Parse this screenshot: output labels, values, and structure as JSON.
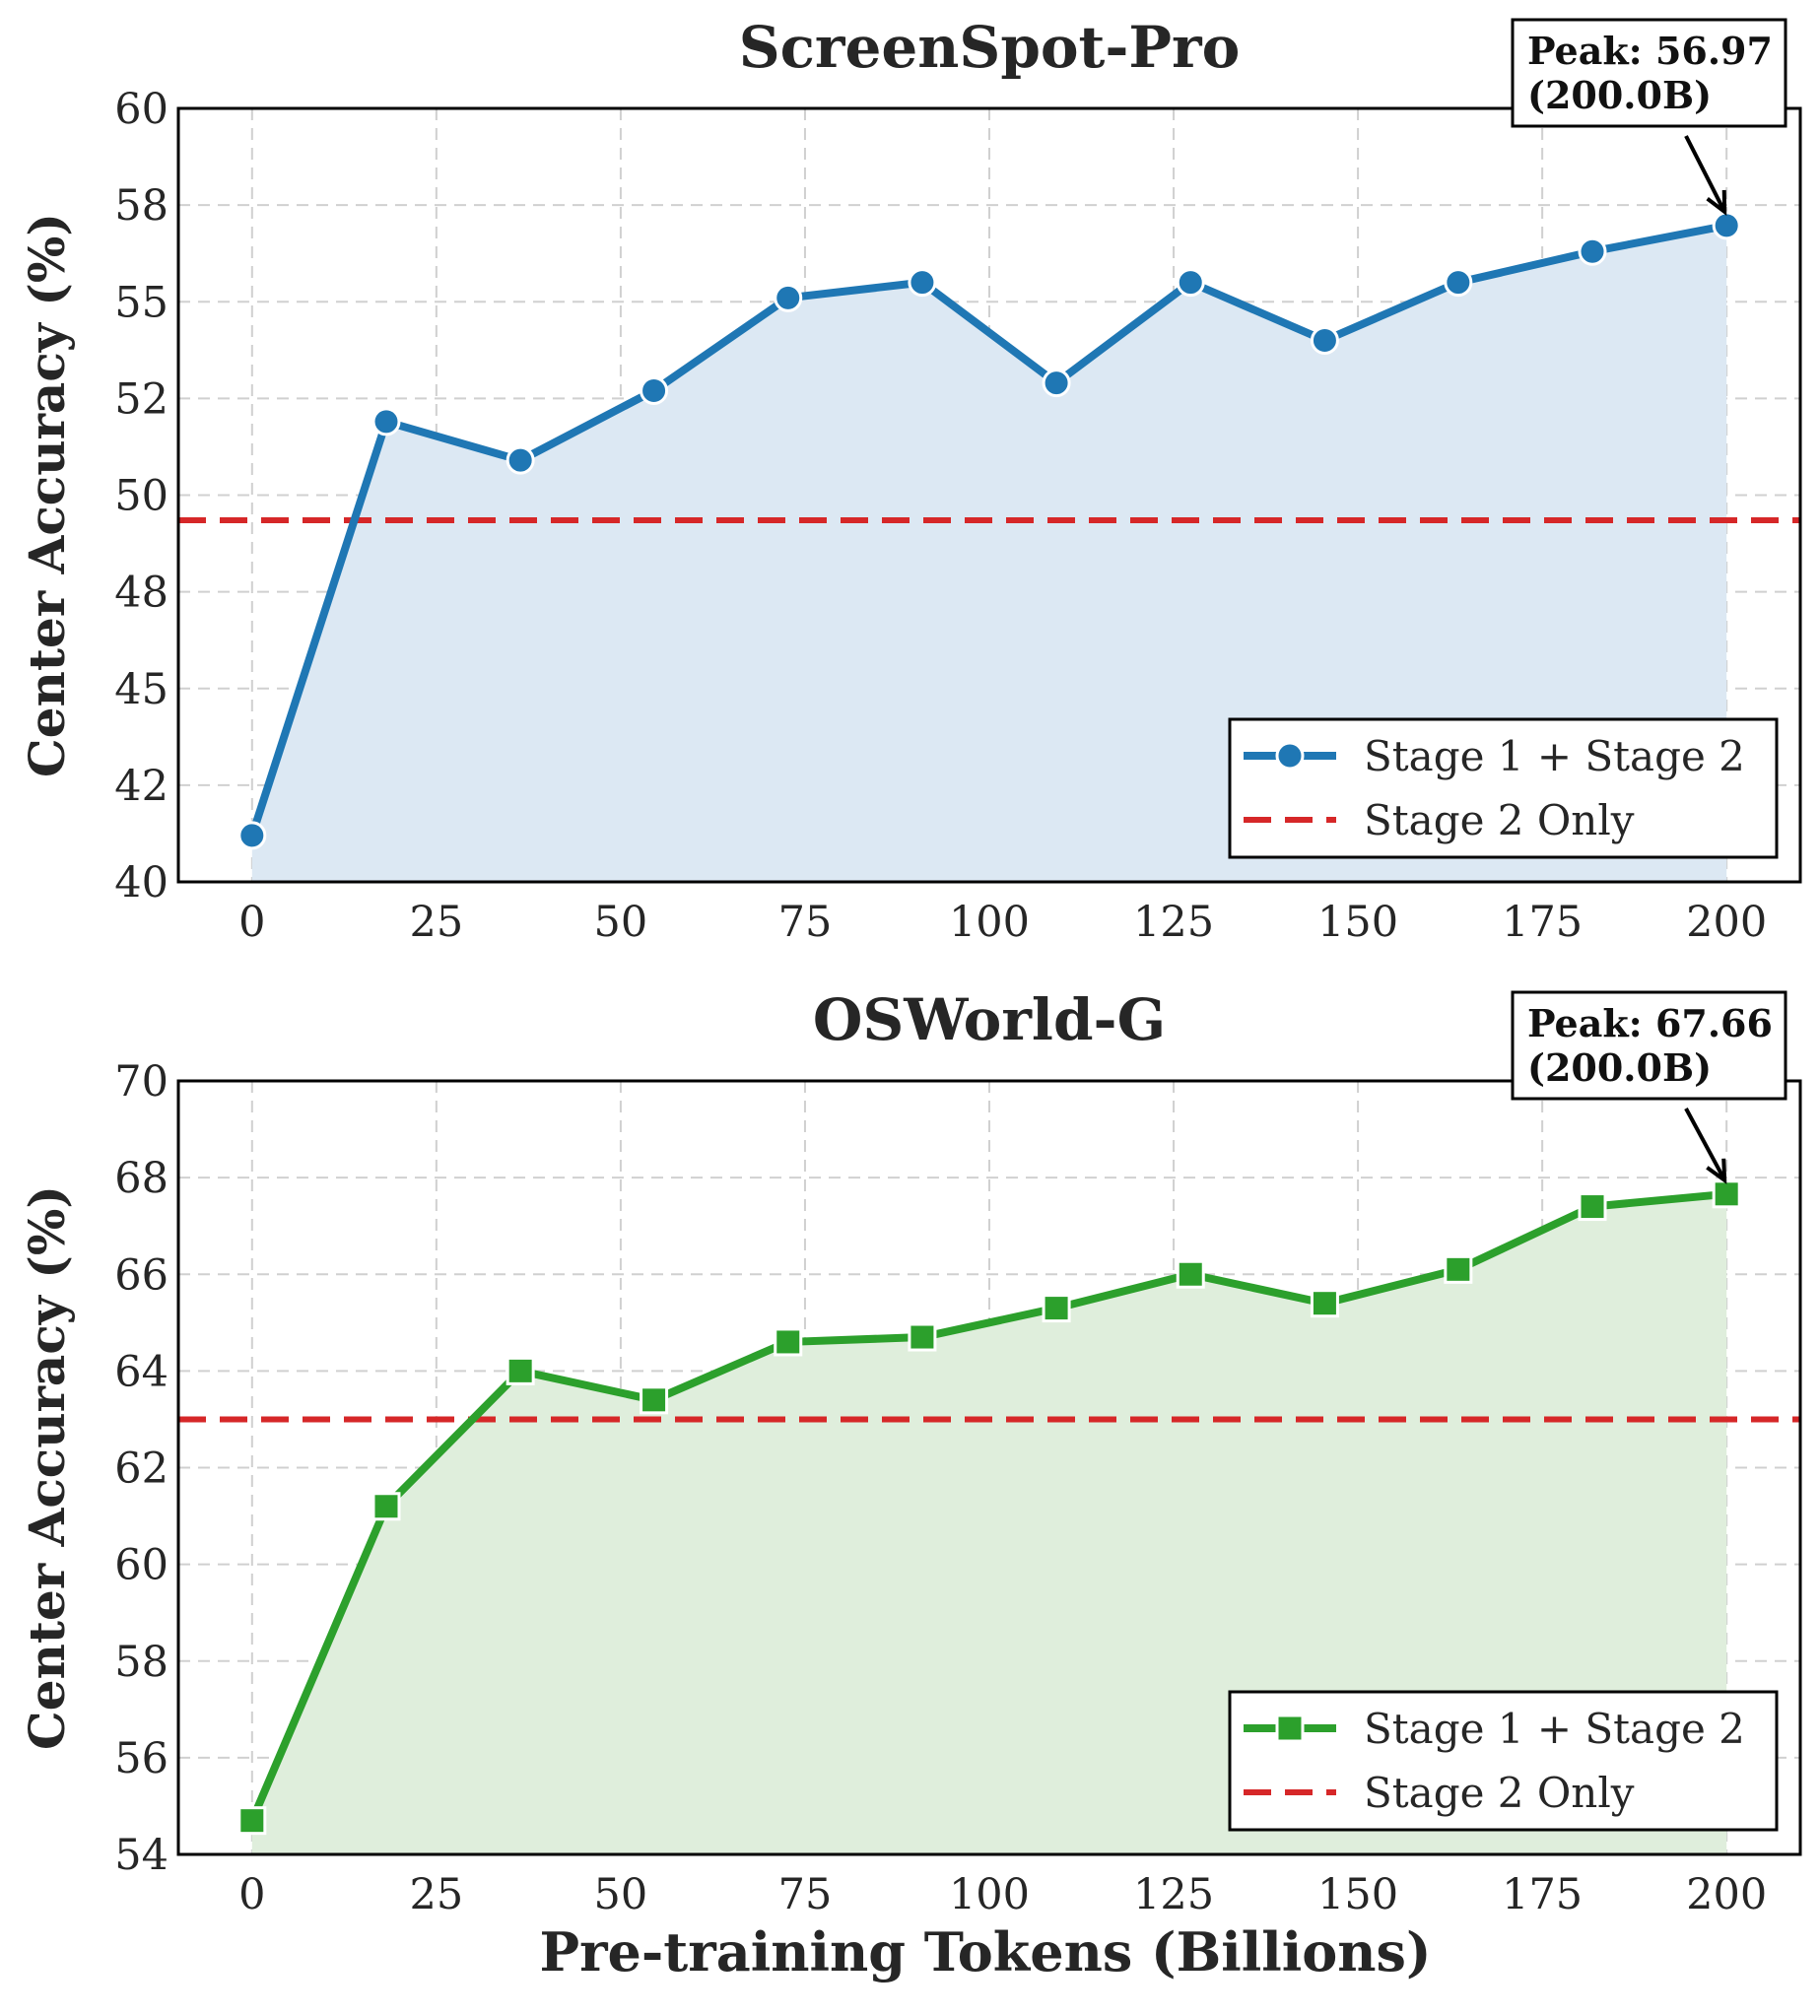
{
  "figure": {
    "xlabel": "Pre-training Tokens (Billions)"
  },
  "chart_data": [
    {
      "type": "line",
      "title": "ScreenSpot-Pro",
      "ylabel": "Center Accuracy (%)",
      "xlim": [
        -10,
        210
      ],
      "ylim": [
        40,
        60
      ],
      "x_ticks": [
        0,
        25,
        50,
        75,
        100,
        125,
        150,
        175,
        200
      ],
      "x_tick_labels": [
        "0",
        "25",
        "50",
        "75",
        "100",
        "125",
        "150",
        "175",
        "200"
      ],
      "y_ticks": [
        40,
        42.5,
        45,
        47.5,
        50,
        52.5,
        55,
        57.5,
        60
      ],
      "y_tick_labels": [
        "40",
        "42",
        "45",
        "48",
        "50",
        "52",
        "55",
        "58",
        "60"
      ],
      "grid": true,
      "legend_position": "bottom-right",
      "series": [
        {
          "name": "Stage 1 + Stage 2",
          "marker": "circle",
          "color": "#1f77b4",
          "fill_color": "#dce8f3",
          "x": [
            0,
            18.2,
            36.4,
            54.5,
            72.7,
            90.9,
            109.1,
            127.3,
            145.5,
            163.6,
            181.8,
            200
          ],
          "values": [
            41.2,
            51.9,
            50.9,
            52.7,
            55.1,
            55.5,
            52.9,
            55.5,
            54.0,
            55.5,
            56.3,
            56.97
          ]
        }
      ],
      "baseline": {
        "name": "Stage 2 Only",
        "value": 49.35,
        "color": "#d62728",
        "style": "dashed"
      },
      "annotation": {
        "line1": "Peak: 56.97",
        "line2": "(200.0B)",
        "x": 200,
        "y": 56.97
      }
    },
    {
      "type": "line",
      "title": "OSWorld-G",
      "ylabel": "Center Accuracy (%)",
      "xlim": [
        -10,
        210
      ],
      "ylim": [
        54,
        70
      ],
      "x_ticks": [
        0,
        25,
        50,
        75,
        100,
        125,
        150,
        175,
        200
      ],
      "x_tick_labels": [
        "0",
        "25",
        "50",
        "75",
        "100",
        "125",
        "150",
        "175",
        "200"
      ],
      "y_ticks": [
        54,
        56,
        58,
        60,
        62,
        64,
        66,
        68,
        70
      ],
      "y_tick_labels": [
        "54",
        "56",
        "58",
        "60",
        "62",
        "64",
        "66",
        "68",
        "70"
      ],
      "grid": true,
      "legend_position": "bottom-right",
      "series": [
        {
          "name": "Stage 1 + Stage 2",
          "marker": "square",
          "color": "#2ca02c",
          "fill_color": "#dfeedc",
          "x": [
            0,
            18.2,
            36.4,
            54.5,
            72.7,
            90.9,
            109.1,
            127.3,
            145.5,
            163.6,
            181.8,
            200
          ],
          "values": [
            54.7,
            61.2,
            64.0,
            63.4,
            64.6,
            64.7,
            65.3,
            66.0,
            65.4,
            66.1,
            67.4,
            67.66
          ]
        }
      ],
      "baseline": {
        "name": "Stage 2 Only",
        "value": 63.0,
        "color": "#d62728",
        "style": "dashed"
      },
      "annotation": {
        "line1": "Peak: 67.66",
        "line2": "(200.0B)",
        "x": 200,
        "y": 67.66
      }
    }
  ]
}
